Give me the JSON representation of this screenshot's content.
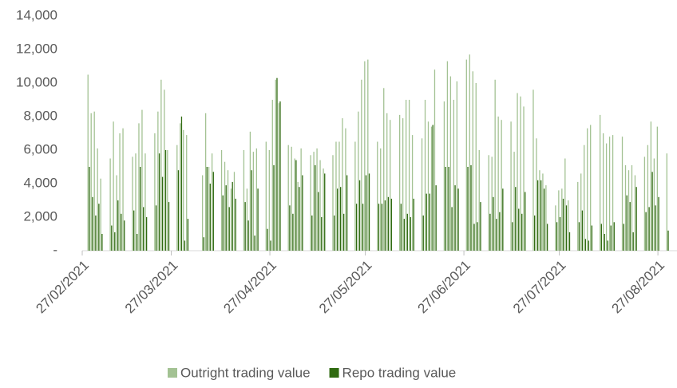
{
  "chart_data": {
    "type": "bar",
    "x": [
      "01/03/2021",
      "02/03/2021",
      "03/03/2021",
      "04/03/2021",
      "05/03/2021",
      "08/03/2021",
      "09/03/2021",
      "10/03/2021",
      "11/03/2021",
      "12/03/2021",
      "15/03/2021",
      "16/03/2021",
      "17/03/2021",
      "18/03/2021",
      "19/03/2021",
      "22/03/2021",
      "23/03/2021",
      "24/03/2021",
      "25/03/2021",
      "26/03/2021",
      "29/03/2021",
      "30/03/2021",
      "31/03/2021",
      "01/04/2021",
      "06/04/2021",
      "07/04/2021",
      "08/04/2021",
      "09/04/2021",
      "12/04/2021",
      "13/04/2021",
      "14/04/2021",
      "15/04/2021",
      "16/04/2021",
      "19/04/2021",
      "20/04/2021",
      "21/04/2021",
      "22/04/2021",
      "23/04/2021",
      "26/04/2021",
      "27/04/2021",
      "28/04/2021",
      "29/04/2021",
      "30/04/2021",
      "03/05/2021",
      "04/05/2021",
      "05/05/2021",
      "06/05/2021",
      "07/05/2021",
      "10/05/2021",
      "11/05/2021",
      "12/05/2021",
      "13/05/2021",
      "14/05/2021",
      "17/05/2021",
      "18/05/2021",
      "19/05/2021",
      "20/05/2021",
      "21/05/2021",
      "24/05/2021",
      "25/05/2021",
      "26/05/2021",
      "27/05/2021",
      "28/05/2021",
      "31/05/2021",
      "01/06/2021",
      "02/06/2021",
      "03/06/2021",
      "04/06/2021",
      "07/06/2021",
      "08/06/2021",
      "09/06/2021",
      "10/06/2021",
      "11/06/2021",
      "14/06/2021",
      "15/06/2021",
      "16/06/2021",
      "17/06/2021",
      "18/06/2021",
      "21/06/2021",
      "22/06/2021",
      "23/06/2021",
      "24/06/2021",
      "25/06/2021",
      "28/06/2021",
      "29/06/2021",
      "30/06/2021",
      "01/07/2021",
      "02/07/2021",
      "05/07/2021",
      "06/07/2021",
      "07/07/2021",
      "08/07/2021",
      "09/07/2021",
      "12/07/2021",
      "13/07/2021",
      "14/07/2021",
      "15/07/2021",
      "16/07/2021",
      "19/07/2021",
      "20/07/2021",
      "21/07/2021",
      "22/07/2021",
      "23/07/2021",
      "26/07/2021",
      "27/07/2021",
      "28/07/2021",
      "29/07/2021",
      "30/07/2021",
      "02/08/2021",
      "03/08/2021",
      "04/08/2021",
      "05/08/2021",
      "06/08/2021",
      "09/08/2021",
      "10/08/2021",
      "11/08/2021",
      "12/08/2021",
      "13/08/2021",
      "16/08/2021",
      "17/08/2021",
      "18/08/2021",
      "19/08/2021",
      "20/08/2021",
      "23/08/2021",
      "24/08/2021",
      "25/08/2021",
      "26/08/2021",
      "27/08/2021",
      "30/08/2021"
    ],
    "series": [
      {
        "name": "Outright trading value",
        "color": "#a3c293",
        "values": [
          10500,
          8200,
          8300,
          6100,
          4300,
          5500,
          7700,
          4500,
          7000,
          7300,
          5600,
          5800,
          7600,
          8400,
          5800,
          7000,
          8300,
          10200,
          9600,
          6000,
          6300,
          7600,
          7200,
          6900,
          4500,
          8200,
          5000,
          5800,
          6000,
          5300,
          4800,
          3700,
          4700,
          6000,
          3700,
          7100,
          5900,
          6100,
          6500,
          6000,
          9000,
          10200,
          8800,
          6300,
          6200,
          5500,
          4100,
          6100,
          5700,
          5900,
          6100,
          5400,
          4900,
          5700,
          6500,
          6500,
          7900,
          7300,
          6500,
          8300,
          10200,
          11300,
          11400,
          6500,
          6100,
          9700,
          8200,
          7800,
          8100,
          7900,
          9000,
          9000,
          6900,
          6700,
          9000,
          7700,
          7400,
          10800,
          8900,
          11300,
          10400,
          9000,
          10100,
          11400,
          11700,
          10700,
          10000,
          6000,
          5700,
          5600,
          10200,
          8000,
          7800,
          7700,
          5900,
          9400,
          9200,
          8600,
          9600,
          6700,
          4800,
          4600,
          3900,
          2700,
          3600,
          3700,
          5500,
          3000,
          4100,
          4600,
          6300,
          7300,
          7500,
          8100,
          7000,
          6400,
          6800,
          6900,
          6800,
          5100,
          4800,
          5100,
          4500,
          5600,
          6300,
          7700,
          5500,
          7400,
          5800
        ]
      },
      {
        "name": "Repo trading value",
        "color": "#2f6a10",
        "values": [
          5000,
          3200,
          2100,
          2800,
          1000,
          1500,
          1100,
          3000,
          2200,
          1800,
          2400,
          1000,
          5000,
          2600,
          2000,
          2700,
          5800,
          4400,
          6000,
          2900,
          4800,
          8000,
          600,
          1900,
          800,
          5000,
          4000,
          4700,
          3300,
          3900,
          2600,
          4100,
          3100,
          2900,
          1800,
          4800,
          900,
          3700,
          1300,
          600,
          5100,
          10300,
          8900,
          2700,
          2200,
          5400,
          3800,
          4500,
          2100,
          5100,
          3500,
          2000,
          4600,
          2100,
          3700,
          3800,
          2200,
          4500,
          2800,
          4200,
          2800,
          4500,
          4600,
          2800,
          2800,
          3000,
          3200,
          3100,
          2800,
          1900,
          2200,
          2000,
          3100,
          2100,
          3400,
          3400,
          7500,
          3900,
          5000,
          5000,
          2600,
          3900,
          3700,
          5000,
          5100,
          1600,
          1700,
          2900,
          2200,
          3200,
          1900,
          2300,
          3700,
          1700,
          3800,
          2500,
          2200,
          3500,
          2100,
          4200,
          4200,
          3700,
          1600,
          1700,
          2000,
          3100,
          2700,
          1100,
          1700,
          2400,
          700,
          600,
          1500,
          1600,
          1000,
          600,
          1500,
          1700,
          1600,
          3300,
          2900,
          1100,
          3800,
          2300,
          2600,
          4700,
          2700,
          3200,
          1200
        ]
      }
    ],
    "xlim": [
      "27/02/2021",
      "02/09/2021"
    ],
    "xticks": [
      "27/02/2021",
      "27/03/2021",
      "27/04/2021",
      "27/05/2021",
      "27/06/2021",
      "27/07/2021",
      "27/08/2021"
    ],
    "ylim": [
      0,
      14000
    ],
    "yticks": [
      {
        "value": 0,
        "label": "-"
      },
      {
        "value": 2000,
        "label": "2,000"
      },
      {
        "value": 4000,
        "label": "4,000"
      },
      {
        "value": 6000,
        "label": "6,000"
      },
      {
        "value": 8000,
        "label": "8,000"
      },
      {
        "value": 10000,
        "label": "10,000"
      },
      {
        "value": 12000,
        "label": "12,000"
      },
      {
        "value": 14000,
        "label": "14,000"
      }
    ],
    "legend": "bottom"
  }
}
